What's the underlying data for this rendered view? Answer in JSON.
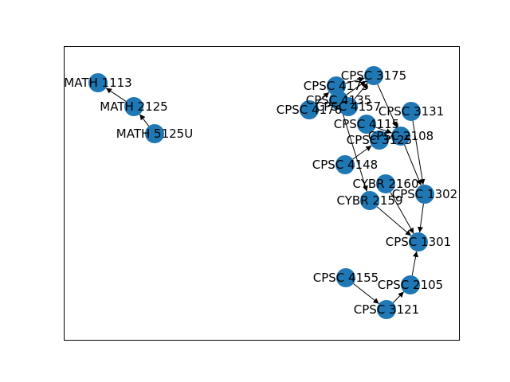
{
  "diagram": {
    "node_color": "#1f77b4",
    "edge_color": "#000000",
    "nodes": [
      {
        "id": "MATH 1113",
        "label": "MATH 1113"
      },
      {
        "id": "MATH 2125",
        "label": "MATH 2125"
      },
      {
        "id": "MATH 5125U",
        "label": "MATH 5125U"
      },
      {
        "id": "CPSC 3175",
        "label": "CPSC 3175"
      },
      {
        "id": "CPSC 4176",
        "label": "CPSC 4176"
      },
      {
        "id": "CPSC 4157",
        "label": "CPSC 4157"
      },
      {
        "id": "CPSC 4135",
        "label": "CPSC 4135"
      },
      {
        "id": "CPSC 4175",
        "label": "CPSC 4175"
      },
      {
        "id": "CPSC 3131",
        "label": "CPSC 3131"
      },
      {
        "id": "CPSC 4115",
        "label": "CPSC 4115"
      },
      {
        "id": "CPSC 2108",
        "label": "CPSC 2108"
      },
      {
        "id": "CPSC 3125",
        "label": "CPSC 3125"
      },
      {
        "id": "CPSC 4148",
        "label": "CPSC 4148"
      },
      {
        "id": "CYBR 2160",
        "label": "CYBR 2160"
      },
      {
        "id": "CPSC 1302",
        "label": "CPSC 1302"
      },
      {
        "id": "CYBR 2159",
        "label": "CYBR 2159"
      },
      {
        "id": "CPSC 1301",
        "label": "CPSC 1301"
      },
      {
        "id": "CPSC 4155",
        "label": "CPSC 4155"
      },
      {
        "id": "CPSC 2105",
        "label": "CPSC 2105"
      },
      {
        "id": "CPSC 3121",
        "label": "CPSC 3121"
      }
    ],
    "edges": [
      {
        "from": "MATH 2125",
        "to": "MATH 1113"
      },
      {
        "from": "MATH 5125U",
        "to": "MATH 2125"
      },
      {
        "from": "CPSC 4176",
        "to": "CPSC 4175"
      },
      {
        "from": "CPSC 4175",
        "to": "CPSC 3175"
      },
      {
        "from": "CPSC 4157",
        "to": "CPSC 3175"
      },
      {
        "from": "CPSC 4135",
        "to": "CPSC 3175"
      },
      {
        "from": "CPSC 3175",
        "to": "CPSC 2108"
      },
      {
        "from": "CPSC 4115",
        "to": "CPSC 2108"
      },
      {
        "from": "CPSC 3125",
        "to": "CPSC 2108"
      },
      {
        "from": "CPSC 4148",
        "to": "CPSC 3125"
      },
      {
        "from": "CPSC 4135",
        "to": "CYBR 2159"
      },
      {
        "from": "CPSC 3131",
        "to": "CPSC 1302"
      },
      {
        "from": "CPSC 2108",
        "to": "CPSC 1302"
      },
      {
        "from": "CPSC 1302",
        "to": "CPSC 1301"
      },
      {
        "from": "CYBR 2160",
        "to": "CPSC 1301"
      },
      {
        "from": "CYBR 2159",
        "to": "CPSC 1301"
      },
      {
        "from": "CPSC 2105",
        "to": "CPSC 1301"
      },
      {
        "from": "CPSC 4155",
        "to": "CPSC 3121"
      },
      {
        "from": "CPSC 3121",
        "to": "CPSC 2105"
      }
    ]
  }
}
